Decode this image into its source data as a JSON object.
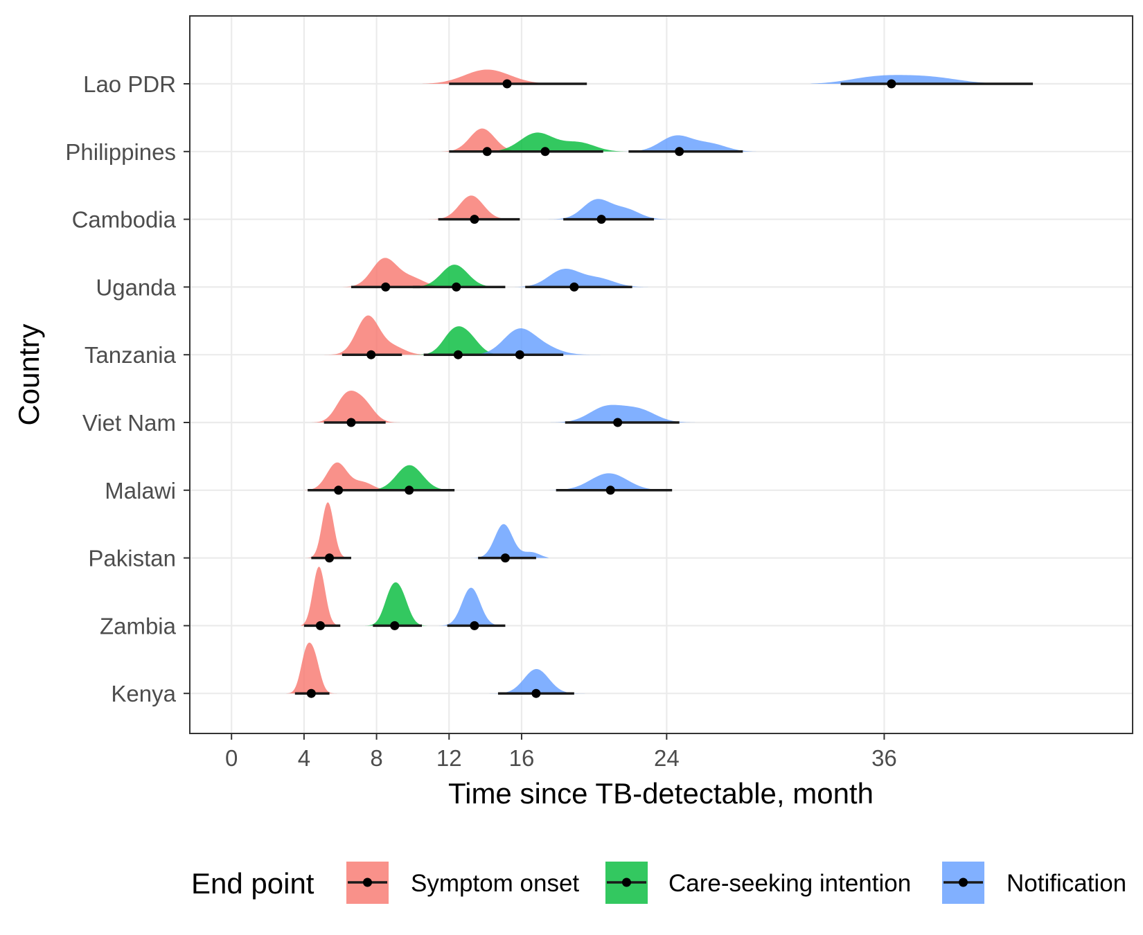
{
  "chart_data": {
    "type": "density-interval",
    "xlabel": "Time since TB-detectable, month",
    "ylabel": "Country",
    "x_ticks": [
      0,
      4,
      8,
      12,
      16,
      24,
      36
    ],
    "xlim": [
      -2.3,
      49.7
    ],
    "grid": true,
    "legend": {
      "title": "End point",
      "position": "bottom",
      "entries": [
        {
          "name": "Symptom onset",
          "color": "#F8766D"
        },
        {
          "name": "Care-seeking intention",
          "color": "#00BA38"
        },
        {
          "name": "Notification",
          "color": "#619CFF"
        }
      ]
    },
    "countries": [
      {
        "name": "Lao PDR",
        "series": [
          {
            "endpoint": "Symptom onset",
            "median": 15.2,
            "lo": 12.0,
            "hi": 19.6,
            "min": 10.5,
            "max": 22.1,
            "peaks": [
              [
                14.0,
                1.0
              ]
            ],
            "height": 0.21
          },
          {
            "endpoint": "Notification",
            "median": 36.4,
            "lo": 33.6,
            "hi": 44.2,
            "min": 31.9,
            "max": 46.7,
            "peaks": [
              [
                35.5,
                1.0
              ],
              [
                38.5,
                0.8
              ]
            ],
            "height": 0.13
          }
        ]
      },
      {
        "name": "Philippines",
        "series": [
          {
            "endpoint": "Symptom onset",
            "median": 14.1,
            "lo": 12.0,
            "hi": 16.0,
            "min": 11.3,
            "max": 17.6,
            "peaks": [
              [
                13.8,
                1.0
              ]
            ],
            "height": 0.34
          },
          {
            "endpoint": "Care-seeking intention",
            "median": 17.3,
            "lo": 14.8,
            "hi": 20.5,
            "min": 13.5,
            "max": 21.9,
            "peaks": [
              [
                16.8,
                1.0
              ],
              [
                19.2,
                0.5
              ]
            ],
            "height": 0.28
          },
          {
            "endpoint": "Notification",
            "median": 24.7,
            "lo": 21.9,
            "hi": 28.2,
            "min": 21.0,
            "max": 29.1,
            "peaks": [
              [
                24.5,
                1.0
              ],
              [
                26.5,
                0.5
              ]
            ],
            "height": 0.24
          }
        ]
      },
      {
        "name": "Cambodia",
        "series": [
          {
            "endpoint": "Symptom onset",
            "median": 13.4,
            "lo": 11.4,
            "hi": 15.9,
            "min": 10.8,
            "max": 16.9,
            "peaks": [
              [
                13.2,
                1.0
              ]
            ],
            "height": 0.35
          },
          {
            "endpoint": "Notification",
            "median": 20.4,
            "lo": 18.3,
            "hi": 23.3,
            "min": 17.4,
            "max": 24.4,
            "peaks": [
              [
                20.1,
                1.0
              ],
              [
                21.8,
                0.5
              ]
            ],
            "height": 0.3
          }
        ]
      },
      {
        "name": "Uganda",
        "series": [
          {
            "endpoint": "Symptom onset",
            "median": 8.5,
            "lo": 6.6,
            "hi": 10.4,
            "min": 6.0,
            "max": 12.4,
            "peaks": [
              [
                8.4,
                1.0
              ],
              [
                10.0,
                0.3
              ]
            ],
            "height": 0.43
          },
          {
            "endpoint": "Care-seeking intention",
            "median": 12.4,
            "lo": 10.0,
            "hi": 15.1,
            "min": 9.0,
            "max": 15.7,
            "peaks": [
              [
                12.3,
                1.0
              ]
            ],
            "height": 0.33
          },
          {
            "endpoint": "Notification",
            "median": 18.9,
            "lo": 16.2,
            "hi": 22.1,
            "min": 15.6,
            "max": 23.6,
            "peaks": [
              [
                18.3,
                1.0
              ],
              [
                20.3,
                0.45
              ]
            ],
            "height": 0.27
          }
        ]
      },
      {
        "name": "Tanzania",
        "series": [
          {
            "endpoint": "Symptom onset",
            "median": 7.7,
            "lo": 6.1,
            "hi": 9.4,
            "min": 5.1,
            "max": 10.9,
            "peaks": [
              [
                7.5,
                1.0
              ],
              [
                9.0,
                0.2
              ]
            ],
            "height": 0.58
          },
          {
            "endpoint": "Care-seeking intention",
            "median": 12.5,
            "lo": 10.6,
            "hi": 14.6,
            "min": 10.0,
            "max": 15.5,
            "peaks": [
              [
                12.2,
                1.0
              ],
              [
                13.1,
                0.75
              ]
            ],
            "height": 0.42
          },
          {
            "endpoint": "Notification",
            "median": 15.9,
            "lo": 13.6,
            "hi": 18.3,
            "min": 13.0,
            "max": 20.9,
            "peaks": [
              [
                15.8,
                1.0
              ],
              [
                17.3,
                0.25
              ]
            ],
            "height": 0.39
          }
        ]
      },
      {
        "name": "Viet Nam",
        "series": [
          {
            "endpoint": "Symptom onset",
            "median": 6.6,
            "lo": 5.1,
            "hi": 8.5,
            "min": 4.4,
            "max": 9.7,
            "peaks": [
              [
                6.3,
                1.0
              ],
              [
                7.3,
                0.7
              ]
            ],
            "height": 0.47
          },
          {
            "endpoint": "Notification",
            "median": 21.3,
            "lo": 18.4,
            "hi": 24.7,
            "min": 17.5,
            "max": 26.1,
            "peaks": [
              [
                20.6,
                1.0
              ],
              [
                22.5,
                0.8
              ]
            ],
            "height": 0.26
          }
        ]
      },
      {
        "name": "Malawi",
        "series": [
          {
            "endpoint": "Symptom onset",
            "median": 5.9,
            "lo": 4.2,
            "hi": 7.7,
            "min": 3.7,
            "max": 8.8,
            "peaks": [
              [
                5.8,
                1.0
              ],
              [
                7.3,
                0.3
              ]
            ],
            "height": 0.41
          },
          {
            "endpoint": "Care-seeking intention",
            "median": 9.8,
            "lo": 7.3,
            "hi": 12.3,
            "min": 6.9,
            "max": 13.5,
            "peaks": [
              [
                9.8,
                1.0
              ]
            ],
            "height": 0.37
          },
          {
            "endpoint": "Notification",
            "median": 20.9,
            "lo": 17.9,
            "hi": 24.3,
            "min": 16.5,
            "max": 25.8,
            "peaks": [
              [
                20.8,
                1.0
              ]
            ],
            "height": 0.25
          }
        ]
      },
      {
        "name": "Pakistan",
        "series": [
          {
            "endpoint": "Symptom onset",
            "median": 5.4,
            "lo": 4.4,
            "hi": 6.6,
            "min": 4.1,
            "max": 7.1,
            "peaks": [
              [
                5.3,
                1.0
              ]
            ],
            "height": 0.82
          },
          {
            "endpoint": "Notification",
            "median": 15.1,
            "lo": 13.6,
            "hi": 16.8,
            "min": 13.0,
            "max": 17.5,
            "peaks": [
              [
                15.0,
                1.0
              ],
              [
                16.6,
                0.2
              ]
            ],
            "height": 0.5
          }
        ]
      },
      {
        "name": "Zambia",
        "series": [
          {
            "endpoint": "Symptom onset",
            "median": 4.9,
            "lo": 4.0,
            "hi": 6.0,
            "min": 3.8,
            "max": 6.9,
            "peaks": [
              [
                4.8,
                1.0
              ]
            ],
            "height": 0.87
          },
          {
            "endpoint": "Care-seeking intention",
            "median": 9.0,
            "lo": 7.8,
            "hi": 10.5,
            "min": 7.2,
            "max": 11.0,
            "peaks": [
              [
                8.8,
                1.0
              ],
              [
                9.4,
                0.85
              ]
            ],
            "height": 0.64
          },
          {
            "endpoint": "Notification",
            "median": 13.4,
            "lo": 11.9,
            "hi": 15.1,
            "min": 11.2,
            "max": 15.8,
            "peaks": [
              [
                13.2,
                1.0
              ]
            ],
            "height": 0.56
          }
        ]
      },
      {
        "name": "Kenya",
        "series": [
          {
            "endpoint": "Symptom onset",
            "median": 4.4,
            "lo": 3.5,
            "hi": 5.4,
            "min": 3.0,
            "max": 5.9,
            "peaks": [
              [
                4.1,
                1.0
              ],
              [
                4.6,
                0.8
              ]
            ],
            "height": 0.75
          },
          {
            "endpoint": "Notification",
            "median": 16.8,
            "lo": 14.7,
            "hi": 18.9,
            "min": 14.1,
            "max": 20.4,
            "peaks": [
              [
                16.8,
                1.0
              ]
            ],
            "height": 0.36
          }
        ]
      }
    ]
  }
}
